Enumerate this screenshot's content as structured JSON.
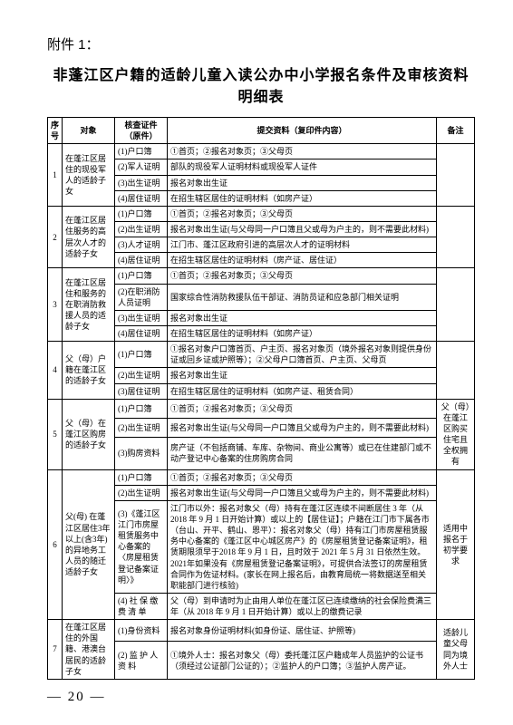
{
  "attachment_label": "附件 1：",
  "title": "非蓬江区户籍的适龄儿童入读公办中小学报名条件及审核资料明细表",
  "headers": {
    "idx": "序号",
    "obj": "对象",
    "doc": "核查证件（原件）",
    "sub": "提交资料（复印件内容）",
    "note": "备注"
  },
  "rows": [
    {
      "idx": "1",
      "obj": "在蓬江区居住的现役军人的适龄子女",
      "items": [
        {
          "doc": "(1)户口簿",
          "sub": "①首页；②报名对象页；③父母页"
        },
        {
          "doc": "(2)军人证明",
          "sub": "部队的现役军人证明材料或现役军人证件"
        },
        {
          "doc": "(3)出生证明",
          "sub": "报名对象出生证"
        },
        {
          "doc": "(4)居住证明",
          "sub": "在招生辖区居住的证明材料（如房产证）"
        }
      ],
      "note": ""
    },
    {
      "idx": "2",
      "obj": "在蓬江区居住服务的高层次人才的适龄子女",
      "items": [
        {
          "doc": "(1)户口簿",
          "sub": "①首页；②报名对象页；③父母页"
        },
        {
          "doc": "(2)出生证明",
          "sub": "报名对象出生证(与父母同一户口簿且父或母为户主的，则不需要此材料)"
        },
        {
          "doc": "(3)人才证明",
          "sub": "江门市、蓬江区政府引进的高层次人才的证明材料"
        },
        {
          "doc": "(4)居住证明",
          "sub": "在招生辖区居住的证明材料（房产证、居住证）"
        }
      ],
      "note": ""
    },
    {
      "idx": "3",
      "obj": "在蓬江区居住和服务的在职消防救援人员的适龄子女",
      "items": [
        {
          "doc": "(1)户口簿",
          "sub": "①首页；②报名对象页；③父母页"
        },
        {
          "doc": "(2)在职消防人员证明",
          "sub": "国家综合性消防救援队伍干部证、消防员证和应急部门相关证明"
        },
        {
          "doc": "(3)出生证明",
          "sub": "报名对象出生证"
        },
        {
          "doc": "(4)居住证明",
          "sub": "在招生辖区居住的证明材料（如房产证）"
        }
      ],
      "note": ""
    },
    {
      "idx": "4",
      "obj": "父（母）户籍在蓬江区的适龄子女",
      "items": [
        {
          "doc": "(1)户口簿",
          "sub": "①报名对象户口簿首页、户主页、报名对象页（境外报名对象则提供身份证或回乡证或护照等）；②父母户口簿首页、户主页、父母页"
        },
        {
          "doc": "(2)出生证明",
          "sub": "报名对象出生证"
        },
        {
          "doc": "(3)居住证明",
          "sub": "在招生辖区居住的证明材料（如房产证、租赁合同）"
        }
      ],
      "note": ""
    },
    {
      "idx": "5",
      "obj": "父（母）在蓬江区购房的适龄子女",
      "items": [
        {
          "doc": "(1)户口簿",
          "sub": "①首页；②报名对象页；③父母页"
        },
        {
          "doc": "(2)出生证明",
          "sub": "报名对象出生证(与父母同一户口簿且父或母为户主的，则不需要此材料)"
        },
        {
          "doc": "(3)购房资料",
          "sub": "房产证（不包括商铺、车库、杂物间、商业公寓等）或已在住建部门或不动产登记中心备案的住房购房合同"
        }
      ],
      "note": "父（母）在蓬江区购买住宅且全权拥有"
    },
    {
      "idx": "6",
      "obj": "父(母) 在蓬江区居住3年以上(含3年)的异地务工人员的随迁适龄子女",
      "items": [
        {
          "doc": "(1)户口簿",
          "sub": "①首页；②报名对象页；③父母页"
        },
        {
          "doc": "(2)出生证明",
          "sub": "报名对象出生证(与父母同一户口簿且父或母为户主的，则不需要此材料)"
        },
        {
          "doc": "(3)《蓬江区江门市房屋租赁服务中心备案的〈房屋租赁登记备案证明〉》",
          "sub": "江门市以外：报名对象父（母）持有在蓬江区连续不间断居住 3 年（从 2018 年 9 月 1 日开始计算）或以上的【居住证】；户籍在江门市下属各市（台山、开平、鹤山、恩平）：报名对象父（母）持有江门市房屋租赁服务中心备案的《蓬江区中心城区房产》的《房屋租赁登记备案证明》，租赁期限须早于2018 年 9 月 1 日，且时效于 2021 年 5 月 31 日依然生效。2021年如果没有《房屋租赁登记备案证明》，可提供合法签订的房屋租赁合同作为佐证材料。(家长在网上报名后，由教育局统一将数据送至相关职能部门进行核验)"
        },
        {
          "doc": "(4) 社 保 缴 费 清 单",
          "sub": "父（母）到申请时为止由用人单位在蓬江区已连续缴纳的社会保险费满三年（从 2018 年 9 月 1 日开始计算）或以上的缴费记录"
        }
      ],
      "note": "适用中报名于初学要求"
    },
    {
      "idx": "7",
      "obj": "在蓬江区居住的外国籍、港澳台居民的适龄子女",
      "items": [
        {
          "doc": "(1)身份资料",
          "sub": "报名对象身份证明材料(如身份证、居住证、护照等)"
        },
        {
          "doc": "(2) 监 护 人 资 料",
          "sub": "①境外人士：报名对象父（母）委托蓬江区户籍成年人员监护的公证书（须经过公证部门公证的）；②监护人的户口簿；③监护人房产证。"
        }
      ],
      "note": "适龄儿童父母同为境外人士"
    }
  ],
  "page_number": "— 20 —"
}
